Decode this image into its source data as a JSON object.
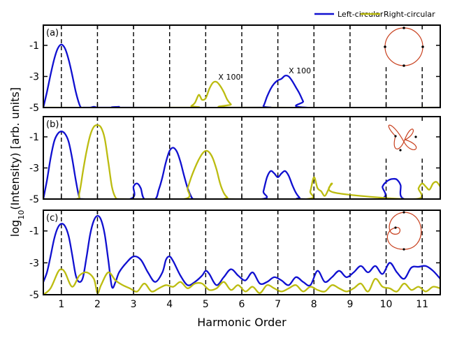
{
  "chart_data": {
    "type": "line",
    "xlabel": "Harmonic Order",
    "ylabel": "log10(Intensity) [arb. units]",
    "ylabel_base": "log",
    "ylabel_sub": "10",
    "ylabel_rest": "(Intensity) [arb. units]",
    "xlim": [
      0.5,
      11.5
    ],
    "ylim": [
      -5,
      0.3
    ],
    "x_ticks": [
      1,
      2,
      3,
      4,
      5,
      6,
      7,
      8,
      9,
      10,
      11
    ],
    "y_ticks": [
      -1,
      -3,
      -5
    ],
    "legend": {
      "placement": "top-right",
      "entries": [
        {
          "label": "Left-circular",
          "color": "#1010d0"
        },
        {
          "label": "Right-circular",
          "color": "#bcbc10"
        }
      ]
    },
    "panels": [
      {
        "label": "(a)",
        "dashed_full": [
          1,
          2,
          3,
          4,
          5,
          6,
          7,
          8,
          9
        ],
        "dashed_partial": [
          10,
          11
        ],
        "inset": "circle",
        "annotations": [
          {
            "text": "X 100",
            "x": 5.35,
            "y": -3.2
          },
          {
            "text": "X 100",
            "x": 7.3,
            "y": -2.8
          }
        ],
        "series": [
          {
            "name": "Left-circular",
            "x": [
              0.5,
              0.6,
              0.7,
              0.8,
              0.9,
              1.0,
              1.1,
              1.2,
              1.3,
              1.4,
              1.5,
              1.55,
              1.6,
              1.8,
              1.9,
              2.0,
              2.1,
              2.3,
              2.5,
              2.6,
              2.7,
              6.5,
              6.6,
              6.7,
              6.8,
              6.9,
              7.0,
              7.1,
              7.2,
              7.3,
              7.4,
              7.5,
              7.6,
              7.7,
              7.8,
              11.5
            ],
            "y": [
              -5,
              -4.0,
              -2.9,
              -1.9,
              -1.2,
              -0.95,
              -1.2,
              -1.9,
              -2.9,
              -4.0,
              -4.8,
              -5,
              -5,
              -5,
              -4.95,
              -5,
              -5,
              -5,
              -5,
              -4.95,
              -5,
              -5,
              -4.9,
              -4.3,
              -3.8,
              -3.45,
              -3.25,
              -3.15,
              -2.95,
              -3.0,
              -3.3,
              -3.7,
              -4.1,
              -4.6,
              -5,
              -5
            ]
          },
          {
            "name": "Right-circular",
            "x": [
              0.5,
              4.5,
              4.6,
              4.7,
              4.8,
              4.85,
              4.9,
              5.0,
              5.1,
              5.2,
              5.3,
              5.4,
              5.5,
              5.6,
              5.7,
              5.8,
              11.5
            ],
            "y": [
              -5,
              -5,
              -4.9,
              -4.7,
              -4.2,
              -4.3,
              -4.5,
              -4.4,
              -3.8,
              -3.4,
              -3.35,
              -3.6,
              -4.0,
              -4.5,
              -4.8,
              -5,
              -5
            ]
          }
        ]
      },
      {
        "label": "(b)",
        "dashed_full": [
          1,
          2,
          3,
          4,
          5,
          6,
          7,
          8,
          9
        ],
        "dashed_partial": [
          10,
          11
        ],
        "inset": "trefoil",
        "annotations": [],
        "series": [
          {
            "name": "Left-circular",
            "x": [
              0.5,
              0.6,
              0.7,
              0.8,
              0.9,
              1.0,
              1.1,
              1.2,
              1.3,
              1.4,
              1.5,
              1.6,
              2.9,
              3.0,
              3.1,
              3.2,
              3.3,
              3.6,
              3.7,
              3.8,
              3.9,
              4.0,
              4.1,
              4.2,
              4.3,
              4.4,
              4.5,
              4.6,
              4.65,
              4.7,
              6.55,
              6.6,
              6.7,
              6.8,
              6.9,
              7.0,
              7.1,
              7.2,
              7.3,
              7.4,
              7.5,
              7.6,
              7.7,
              9.8,
              9.9,
              10.0,
              10.1,
              10.2,
              10.3,
              10.4,
              10.5,
              11.5
            ],
            "y": [
              -5,
              -3.8,
              -2.4,
              -1.3,
              -0.8,
              -0.65,
              -0.8,
              -1.3,
              -2.4,
              -3.8,
              -4.9,
              -5,
              -5,
              -4.2,
              -4.0,
              -4.3,
              -5,
              -5,
              -4.4,
              -3.6,
              -2.6,
              -1.9,
              -1.7,
              -1.95,
              -2.6,
              -3.5,
              -4.3,
              -4.85,
              -5,
              -5,
              -5,
              -4.5,
              -3.6,
              -3.2,
              -3.35,
              -3.6,
              -3.35,
              -3.2,
              -3.5,
              -4.1,
              -4.6,
              -4.9,
              -5,
              -5,
              -4.2,
              -3.9,
              -3.75,
              -3.7,
              -3.75,
              -4.1,
              -5,
              -5
            ]
          },
          {
            "name": "Right-circular",
            "x": [
              0.5,
              1.4,
              1.5,
              1.6,
              1.7,
              1.8,
              1.9,
              2.0,
              2.1,
              2.2,
              2.3,
              2.4,
              2.5,
              2.6,
              2.7,
              4.4,
              4.5,
              4.6,
              4.7,
              4.8,
              4.9,
              5.0,
              5.1,
              5.2,
              5.3,
              5.4,
              5.5,
              5.6,
              5.7,
              7.8,
              7.9,
              8.0,
              8.1,
              8.2,
              8.3,
              8.4,
              8.5,
              8.6,
              10.8,
              10.9,
              11.0,
              11.1,
              11.2,
              11.3,
              11.4,
              11.5
            ],
            "y": [
              -5,
              -5,
              -4.6,
              -3.2,
              -1.9,
              -0.9,
              -0.35,
              -0.25,
              -0.4,
              -1.1,
              -2.6,
              -4.2,
              -4.9,
              -5,
              -5,
              -5,
              -4.3,
              -3.6,
              -3.0,
              -2.5,
              -2.1,
              -1.9,
              -2.0,
              -2.4,
              -3.1,
              -4.0,
              -4.6,
              -4.9,
              -5,
              -5,
              -4.5,
              -3.6,
              -4.3,
              -4.5,
              -4.8,
              -4.4,
              -4.0,
              -4.6,
              -5,
              -4.3,
              -4.0,
              -4.2,
              -4.4,
              -4.0,
              -3.9,
              -4.2
            ]
          }
        ]
      },
      {
        "label": "(c)",
        "dashed_full": [
          1,
          2,
          3,
          4,
          5,
          6,
          7,
          8,
          9,
          10,
          11
        ],
        "dashed_partial": [],
        "inset": "limacon",
        "annotations": [],
        "series": [
          {
            "name": "Left-circular",
            "x": [
              0.5,
              0.6,
              0.7,
              0.8,
              0.9,
              1.0,
              1.1,
              1.2,
              1.3,
              1.4,
              1.5,
              1.6,
              1.7,
              1.8,
              1.9,
              2.0,
              2.1,
              2.2,
              2.3,
              2.4,
              2.5,
              2.6,
              2.8,
              3.0,
              3.2,
              3.4,
              3.6,
              3.8,
              3.9,
              4.0,
              4.1,
              4.3,
              4.5,
              4.7,
              4.9,
              5.0,
              5.1,
              5.3,
              5.5,
              5.7,
              5.9,
              6.1,
              6.3,
              6.5,
              6.7,
              6.9,
              7.1,
              7.3,
              7.5,
              7.7,
              7.9,
              8.1,
              8.3,
              8.5,
              8.7,
              8.9,
              9.1,
              9.3,
              9.5,
              9.7,
              9.9,
              10.1,
              10.3,
              10.5,
              10.7,
              10.9,
              11.1,
              11.3,
              11.5
            ],
            "y": [
              -4.2,
              -3.6,
              -2.6,
              -1.5,
              -0.8,
              -0.55,
              -0.7,
              -1.3,
              -2.5,
              -3.8,
              -4.2,
              -3.9,
              -2.6,
              -1.2,
              -0.35,
              -0.05,
              -0.3,
              -1.2,
              -2.8,
              -4.5,
              -4.2,
              -3.6,
              -3.0,
              -2.6,
              -2.8,
              -3.6,
              -4.2,
              -3.6,
              -2.8,
              -2.6,
              -2.9,
              -3.8,
              -4.4,
              -4.2,
              -3.8,
              -3.5,
              -3.7,
              -4.4,
              -3.9,
              -3.4,
              -3.8,
              -4.1,
              -3.6,
              -4.3,
              -4.2,
              -3.9,
              -4.1,
              -4.4,
              -3.9,
              -4.2,
              -4.4,
              -3.5,
              -4.2,
              -3.9,
              -3.5,
              -3.9,
              -3.6,
              -3.2,
              -3.6,
              -3.2,
              -3.7,
              -3.0,
              -3.6,
              -4.0,
              -3.3,
              -3.25,
              -3.2,
              -3.5,
              -4.0
            ]
          },
          {
            "name": "Right-circular",
            "x": [
              0.5,
              0.7,
              0.9,
              1.0,
              1.1,
              1.3,
              1.5,
              1.7,
              1.9,
              2.0,
              2.1,
              2.3,
              2.5,
              2.7,
              2.9,
              3.1,
              3.3,
              3.5,
              3.7,
              3.9,
              4.1,
              4.3,
              4.5,
              4.7,
              4.9,
              5.1,
              5.3,
              5.5,
              5.7,
              5.9,
              6.1,
              6.3,
              6.5,
              6.7,
              6.9,
              7.1,
              7.3,
              7.5,
              7.7,
              7.9,
              8.1,
              8.3,
              8.5,
              8.7,
              8.9,
              9.1,
              9.3,
              9.5,
              9.7,
              9.9,
              10.1,
              10.3,
              10.5,
              10.7,
              10.9,
              11.1,
              11.3,
              11.5
            ],
            "y": [
              -5,
              -4.6,
              -3.6,
              -3.4,
              -3.6,
              -4.5,
              -3.8,
              -3.6,
              -4.0,
              -4.9,
              -4.4,
              -3.6,
              -4.1,
              -4.4,
              -4.6,
              -4.8,
              -4.3,
              -4.8,
              -4.6,
              -4.4,
              -4.5,
              -4.2,
              -4.6,
              -4.3,
              -4.3,
              -4.7,
              -4.6,
              -4.2,
              -4.7,
              -4.4,
              -4.8,
              -4.5,
              -4.9,
              -4.4,
              -4.6,
              -4.8,
              -4.6,
              -4.4,
              -4.8,
              -4.5,
              -4.7,
              -4.8,
              -4.4,
              -4.6,
              -4.8,
              -4.6,
              -4.3,
              -4.8,
              -4.0,
              -4.5,
              -4.6,
              -4.8,
              -4.3,
              -4.7,
              -4.5,
              -4.8,
              -4.5,
              -4.6
            ]
          }
        ]
      }
    ]
  }
}
